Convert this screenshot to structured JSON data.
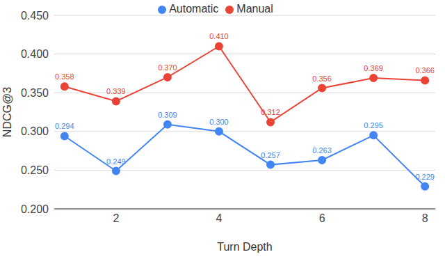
{
  "chart_data": {
    "type": "line",
    "x_label": "Turn Depth",
    "y_label": "NDCG@3",
    "x": [
      1,
      2,
      3,
      4,
      5,
      6,
      7,
      8
    ],
    "series": [
      {
        "name": "Automatic",
        "color": "#4285f4",
        "values": [
          0.294,
          0.249,
          0.309,
          0.3,
          0.257,
          0.263,
          0.295,
          0.229
        ],
        "value_labels": [
          "0.294",
          "0.249",
          "0.309",
          "0.300",
          "0.257",
          "0.263",
          "0.295",
          "0.229"
        ]
      },
      {
        "name": "Manual",
        "color": "#ea4335",
        "values": [
          0.358,
          0.339,
          0.37,
          0.41,
          0.312,
          0.356,
          0.369,
          0.366
        ],
        "value_labels": [
          "0.358",
          "0.339",
          "0.370",
          "0.410",
          "0.312",
          "0.356",
          "0.369",
          "0.366"
        ]
      }
    ],
    "xlim": [
      0.8,
      8.2
    ],
    "xticks": [
      2,
      4,
      6,
      8
    ],
    "ylim": [
      0.2,
      0.45
    ],
    "yticks": [
      {
        "value": 0.2,
        "label": "0.200"
      },
      {
        "value": 0.25,
        "label": "0.250"
      },
      {
        "value": 0.3,
        "label": "0.300"
      },
      {
        "value": 0.35,
        "label": "0.350"
      },
      {
        "value": 0.4,
        "label": "0.400"
      },
      {
        "value": 0.45,
        "label": "0.450"
      }
    ],
    "grid": true,
    "legend": "top",
    "data_labels": true
  }
}
